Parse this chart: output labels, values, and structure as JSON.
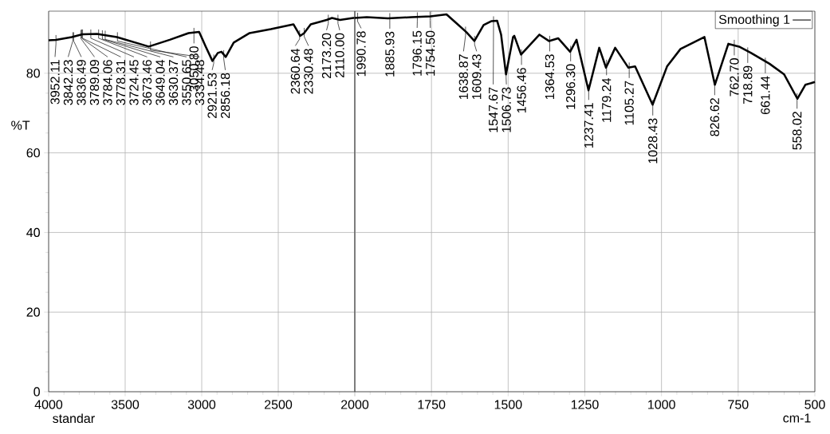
{
  "chart_data": [
    {
      "type": "line",
      "ylabel": "%T",
      "xlim": [
        4000,
        2000
      ],
      "xticks": [
        4000,
        3500,
        3000,
        2500,
        2000
      ],
      "ylim": [
        0,
        95.6
      ],
      "yticks": [
        0,
        20,
        40,
        60,
        80
      ],
      "grid": true,
      "series": [
        {
          "color": "#000000",
          "x": [
            4000,
            3952,
            3849,
            3780,
            3684,
            3554,
            3346,
            3209,
            3086,
            3017,
            2975,
            2930,
            2895,
            2871,
            2843,
            2791,
            2687,
            2548,
            2401,
            2357,
            2331,
            2288,
            2184,
            2149,
            2097,
            2010,
            2000
          ],
          "values": [
            88.3,
            88.4,
            89.1,
            89.8,
            89.9,
            89.1,
            86.7,
            88.4,
            90.1,
            90.4,
            86.8,
            83.1,
            85.1,
            85.4,
            84.1,
            87.7,
            90.1,
            91.1,
            92.3,
            89.4,
            90.1,
            92.3,
            93.4,
            93.9,
            93.4,
            93.9,
            93.9
          ]
        }
      ],
      "annotations": [
        {
          "text": "3952.11",
          "x": 3952.11,
          "y": 88.4
        },
        {
          "text": "3842.23",
          "x": 3842.23,
          "y": 89.1
        },
        {
          "text": "3836.49",
          "x": 3836.49,
          "y": 89.1
        },
        {
          "text": "3789.09",
          "x": 3789.09,
          "y": 89.7
        },
        {
          "text": "3784.06",
          "x": 3784.06,
          "y": 89.8
        },
        {
          "text": "3778.31",
          "x": 3778.31,
          "y": 89.8
        },
        {
          "text": "3724.45",
          "x": 3724.45,
          "y": 89.8
        },
        {
          "text": "3673.46",
          "x": 3673.46,
          "y": 89.8
        },
        {
          "text": "3649.04",
          "x": 3649.04,
          "y": 89.6
        },
        {
          "text": "3630.37",
          "x": 3630.37,
          "y": 89.5
        },
        {
          "text": "3550.65",
          "x": 3550.65,
          "y": 89.1
        },
        {
          "text": "3334.48",
          "x": 3334.48,
          "y": 86.8
        },
        {
          "text": "3050.80",
          "x": 3050.8,
          "y": 90.2
        },
        {
          "text": "2921.53",
          "x": 2921.53,
          "y": 83.5
        },
        {
          "text": "2856.18",
          "x": 2856.18,
          "y": 84.6
        },
        {
          "text": "2360.64",
          "x": 2360.64,
          "y": 89.6
        },
        {
          "text": "2330.48",
          "x": 2330.48,
          "y": 90.2
        },
        {
          "text": "2173.20",
          "x": 2173.2,
          "y": 93.5
        },
        {
          "text": "2110.00",
          "x": 2110.0,
          "y": 93.5
        },
        "standar"
      ]
    },
    {
      "type": "line",
      "xlabel": "cm-1",
      "tick_labels": "x",
      "xlim": [
        2000,
        500
      ],
      "xticks": [
        {
          "value": 2000,
          "label": null
        },
        1750,
        1500,
        1250,
        1000,
        750,
        500
      ],
      "ylim": [
        0,
        95.6
      ],
      "yticks": [
        0,
        20,
        40,
        60,
        80
      ],
      "grid": true,
      "legend": "top right",
      "series": [
        {
          "name": "Smoothing 1",
          "color": "#000000",
          "x": [
            2000,
            1961,
            1892,
            1814,
            1753,
            1701,
            1666,
            1636,
            1610,
            1580,
            1554,
            1536,
            1523,
            1507,
            1484,
            1480,
            1458,
            1398,
            1367,
            1337,
            1298,
            1277,
            1238,
            1203,
            1181,
            1151,
            1108,
            1086,
            1029,
            982,
            938,
            860,
            826,
            782,
            747,
            708,
            648,
            600,
            557,
            531,
            500
          ],
          "values": [
            93.9,
            94.1,
            93.8,
            94.1,
            94.3,
            94.8,
            92.4,
            90.3,
            88.1,
            92.1,
            93.1,
            93.2,
            89.7,
            79.7,
            89.1,
            89.4,
            84.7,
            89.7,
            88.1,
            88.8,
            85.4,
            88.4,
            75.7,
            86.4,
            81.4,
            86.4,
            81.4,
            81.7,
            72.1,
            81.7,
            86.1,
            89.1,
            77.1,
            87.4,
            86.7,
            85.1,
            82.4,
            79.7,
            73.6,
            77.1,
            77.8
          ]
        }
      ],
      "annotations": [
        {
          "text": "1990.78",
          "x": 1990.78,
          "y": 94.0
        },
        {
          "text": "1885.93",
          "x": 1885.93,
          "y": 93.9
        },
        {
          "text": "1796.15",
          "x": 1796.15,
          "y": 94.1
        },
        {
          "text": "1754.50",
          "x": 1754.5,
          "y": 94.3
        },
        {
          "text": "1638.87",
          "x": 1638.87,
          "y": 90.5
        },
        {
          "text": "1609.43",
          "x": 1609.43,
          "y": 88.2
        },
        {
          "text": "1547.67",
          "x": 1547.67,
          "y": 93.1
        },
        {
          "text": "1506.73",
          "x": 1506.73,
          "y": 79.9
        },
        {
          "text": "1456.46",
          "x": 1456.46,
          "y": 84.8
        },
        {
          "text": "1364.53",
          "x": 1364.53,
          "y": 88.2
        },
        {
          "text": "1296.30",
          "x": 1296.3,
          "y": 85.7
        },
        {
          "text": "1237.41",
          "x": 1237.41,
          "y": 76.0
        },
        {
          "text": "1179.24",
          "x": 1179.24,
          "y": 82.2
        },
        {
          "text": "1105.27",
          "x": 1105.27,
          "y": 81.5
        },
        {
          "text": "1028.43",
          "x": 1028.43,
          "y": 72.1
        },
        {
          "text": "826.62",
          "x": 826.62,
          "y": 77.2
        },
        {
          "text": "762.70",
          "x": 762.7,
          "y": 87.2
        },
        {
          "text": "718.89",
          "x": 718.89,
          "y": 85.3
        },
        {
          "text": "661.44",
          "x": 661.44,
          "y": 82.7
        },
        {
          "text": "558.02",
          "x": 558.02,
          "y": 73.8
        }
      ]
    }
  ]
}
